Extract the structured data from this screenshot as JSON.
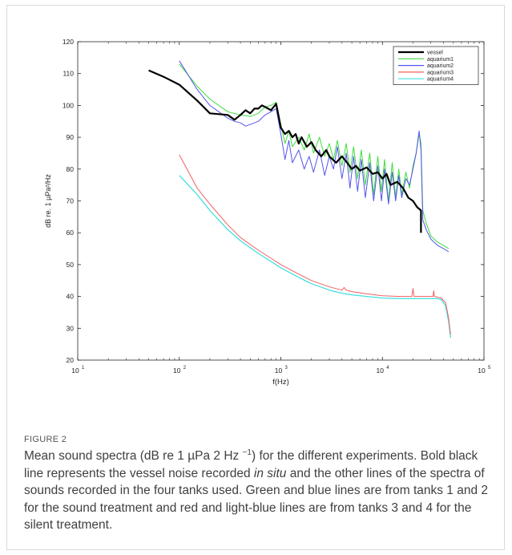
{
  "figure_label": "FIGURE 2",
  "caption": {
    "part1": "Mean sound spectra (dB re 1 µPa 2 Hz ",
    "sup": "−1",
    "part2": ") for the different experiments. Bold black line represents the vessel noise recorded ",
    "italic": "in situ",
    "part3": " and the other lines of the spectra of sounds recorded in the four tanks used. Green and blue lines are from tanks 1 and 2 for the sound treatment and red and light-blue lines are from tanks 3 and 4 for the silent treatment."
  },
  "chart_data": {
    "type": "line",
    "xlabel": "f(Hz)",
    "ylabel": "dB re. 1 µPa²/Hz",
    "xscale": "log",
    "xlim": [
      10,
      100000
    ],
    "ylim": [
      20,
      120
    ],
    "xticks": [
      {
        "value": 10,
        "label": "10",
        "exp": "1"
      },
      {
        "value": 100,
        "label": "10",
        "exp": "2"
      },
      {
        "value": 1000,
        "label": "10",
        "exp": "3"
      },
      {
        "value": 10000,
        "label": "10",
        "exp": "4"
      },
      {
        "value": 100000,
        "label": "10",
        "exp": "5"
      }
    ],
    "yticks": [
      20,
      30,
      40,
      50,
      60,
      70,
      80,
      90,
      100,
      110,
      120
    ],
    "grid": false,
    "legend_position": "top-right",
    "series": [
      {
        "name": "vessel",
        "color": "#000000",
        "width": 2.2,
        "x": [
          50,
          70,
          100,
          150,
          200,
          300,
          350,
          400,
          450,
          500,
          550,
          600,
          650,
          700,
          800,
          900,
          1000,
          1100,
          1200,
          1300,
          1400,
          1500,
          1600,
          1800,
          2000,
          2200,
          2500,
          2800,
          3000,
          3500,
          4000,
          4500,
          5000,
          5500,
          6000,
          7000,
          8000,
          9000,
          10000,
          11000,
          12000,
          14000,
          16000,
          18000,
          20000,
          22000,
          24000,
          24000
        ],
        "y": [
          111,
          109,
          106.5,
          101.5,
          97.5,
          97,
          95.5,
          97,
          98.5,
          97.5,
          99,
          99,
          100,
          99.5,
          98.5,
          100.5,
          93,
          91,
          92,
          90,
          91,
          88,
          90,
          87,
          88.5,
          86,
          84,
          86,
          84,
          82,
          84,
          82,
          80,
          81,
          79.5,
          80.5,
          78.5,
          79,
          77,
          78.5,
          75,
          76,
          74,
          71,
          70,
          68,
          67,
          60
        ]
      },
      {
        "name": "aquarium1",
        "color": "#3ddc3d",
        "width": 1,
        "x": [
          100,
          150,
          200,
          300,
          400,
          500,
          600,
          700,
          800,
          900,
          1000,
          1100,
          1200,
          1300,
          1500,
          1700,
          1900,
          2100,
          2400,
          2700,
          3000,
          3300,
          3600,
          4000,
          4400,
          4800,
          5200,
          5700,
          6200,
          6800,
          7500,
          8200,
          9000,
          9800,
          10500,
          11500,
          12500,
          13500,
          14500,
          15500,
          17000,
          18500,
          20000,
          21500,
          23000,
          24000,
          25000,
          27000,
          30000,
          35000,
          40000,
          45000
        ],
        "y": [
          113,
          106,
          102,
          98,
          97,
          96.5,
          97.5,
          99.5,
          100,
          101,
          94,
          88,
          92,
          87,
          90,
          86,
          91,
          85,
          90,
          84,
          88,
          83,
          89,
          81,
          88,
          79,
          87,
          77,
          86,
          75,
          85,
          72,
          84,
          73,
          83,
          70,
          82,
          71,
          80,
          72,
          79,
          74,
          81,
          85,
          91,
          88,
          67,
          63,
          59,
          57,
          56,
          55
        ]
      },
      {
        "name": "aquarium2",
        "color": "#5555ee",
        "width": 1,
        "x": [
          100,
          150,
          200,
          300,
          350,
          400,
          450,
          500,
          600,
          700,
          800,
          900,
          1000,
          1100,
          1200,
          1300,
          1500,
          1700,
          1900,
          2100,
          2400,
          2700,
          3000,
          3300,
          3600,
          4000,
          4400,
          4800,
          5200,
          5700,
          6200,
          6800,
          7500,
          8200,
          9000,
          9800,
          10500,
          11500,
          12500,
          13500,
          14500,
          15500,
          17000,
          18500,
          20000,
          21500,
          23000,
          24000,
          25000,
          27000,
          30000,
          35000,
          40000,
          45000
        ],
        "y": [
          114,
          105,
          100,
          96,
          95,
          94.5,
          93.5,
          94,
          95,
          97,
          98,
          99,
          91,
          83,
          89,
          82,
          86,
          80,
          84,
          79,
          86,
          78,
          84,
          80,
          87,
          77,
          85,
          74,
          84,
          73,
          83,
          71,
          82,
          70,
          81,
          70,
          80,
          69,
          79,
          70,
          78,
          71,
          77,
          75,
          80,
          85,
          92,
          86,
          64,
          61,
          58,
          56,
          55,
          54
        ]
      },
      {
        "name": "aquarium3",
        "color": "#f06060",
        "width": 1,
        "x": [
          100,
          150,
          200,
          300,
          400,
          600,
          800,
          1000,
          1500,
          2000,
          3000,
          4000,
          4200,
          4400,
          5000,
          7000,
          10000,
          15000,
          19500,
          20000,
          20500,
          25000,
          31500,
          32000,
          32500,
          38000,
          42000,
          45000,
          47000
        ],
        "y": [
          84.5,
          74,
          69,
          62.5,
          58.5,
          54.5,
          52,
          50,
          47,
          45,
          43,
          42,
          42.8,
          42,
          41.5,
          40.8,
          40.2,
          40,
          40,
          42.5,
          40,
          40,
          40,
          41.8,
          40,
          39.5,
          38,
          33,
          28
        ]
      },
      {
        "name": "aquarium4",
        "color": "#40e0e0",
        "width": 1.3,
        "x": [
          100,
          150,
          200,
          300,
          400,
          600,
          800,
          1000,
          1500,
          2000,
          3000,
          4000,
          5000,
          7000,
          10000,
          15000,
          20000,
          25000,
          30000,
          35000,
          38000,
          42000,
          45000,
          47000
        ],
        "y": [
          78,
          72,
          67,
          61,
          57.5,
          53.5,
          51,
          49,
          46,
          44,
          42,
          41,
          40.5,
          40,
          39.5,
          39.3,
          39.3,
          39.3,
          39.3,
          39.3,
          39,
          37,
          32,
          27
        ]
      }
    ]
  }
}
